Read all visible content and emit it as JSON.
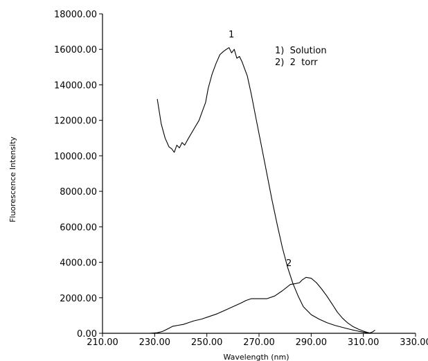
{
  "chart_data": {
    "type": "line",
    "title": "",
    "xlabel": "Wavelength (nm)",
    "ylabel": "Fluorescence Intensity",
    "xlim": [
      210,
      330
    ],
    "ylim": [
      0,
      18000
    ],
    "x_ticks": [
      210,
      230,
      250,
      270,
      290,
      310,
      330
    ],
    "x_tick_labels": [
      "210.00",
      "230.00",
      "250.00",
      "270.00",
      "290.00",
      "310.00",
      "330.00"
    ],
    "y_ticks": [
      0,
      2000,
      4000,
      6000,
      8000,
      10000,
      12000,
      14000,
      16000,
      18000
    ],
    "y_tick_labels": [
      "0.00",
      "2000.00",
      "4000.00",
      "6000.00",
      "8000.00",
      "10000.00",
      "12000.00",
      "14000.00",
      "16000.00",
      "18000.00"
    ],
    "grid": false,
    "legend": {
      "position": "top-right",
      "entries": [
        "1)  Solution",
        "2)  2  torr"
      ]
    },
    "series": [
      {
        "label": "1",
        "x": [
          231.0,
          232.5,
          234.0,
          235.5,
          236.5,
          237.5,
          238.5,
          239.5,
          240.5,
          241.5,
          243.0,
          245.0,
          247.0,
          248.5,
          249.5,
          250.5,
          252.0,
          253.5,
          255.0,
          256.5,
          257.5,
          258.5,
          259.5,
          260.5,
          261.5,
          262.5,
          263.5,
          264.5,
          265.5,
          267.0,
          269.0,
          271.0,
          273.0,
          275.0,
          277.0,
          279.0,
          281.0,
          283.0,
          285.0,
          287.0,
          290.0,
          293.0,
          296.0,
          299.0,
          302.0,
          305.0,
          308.0,
          311.0,
          312.5
        ],
        "y": [
          13200,
          11800,
          11000,
          10500,
          10400,
          10200,
          10600,
          10450,
          10750,
          10600,
          11000,
          11500,
          12000,
          12600,
          13000,
          13800,
          14600,
          15200,
          15700,
          15900,
          16000,
          16100,
          15800,
          16000,
          15500,
          15600,
          15300,
          14900,
          14500,
          13500,
          12000,
          10500,
          9000,
          7500,
          6100,
          4800,
          3700,
          2800,
          2100,
          1500,
          1050,
          800,
          600,
          450,
          330,
          220,
          120,
          40,
          0
        ]
      },
      {
        "label": "2",
        "x": [
          210.0,
          228.0,
          231.0,
          233.0,
          235.0,
          237.0,
          239.0,
          241.0,
          243.0,
          245.0,
          248.0,
          251.0,
          254.0,
          257.0,
          260.0,
          263.0,
          265.0,
          267.0,
          270.0,
          273.0,
          276.0,
          279.0,
          282.0,
          284.0,
          285.5,
          286.5,
          288.0,
          290.0,
          292.0,
          294.0,
          296.0,
          298.0,
          300.0,
          302.0,
          304.0,
          306.0,
          308.0,
          310.0,
          311.5,
          312.5,
          313.5,
          314.5
        ],
        "y": [
          0,
          0,
          30,
          100,
          250,
          400,
          450,
          500,
          600,
          700,
          800,
          950,
          1100,
          1300,
          1500,
          1700,
          1850,
          1950,
          1950,
          1950,
          2100,
          2400,
          2750,
          2800,
          2850,
          3000,
          3150,
          3100,
          2850,
          2500,
          2100,
          1650,
          1200,
          850,
          580,
          380,
          240,
          120,
          50,
          20,
          80,
          180
        ]
      }
    ]
  }
}
